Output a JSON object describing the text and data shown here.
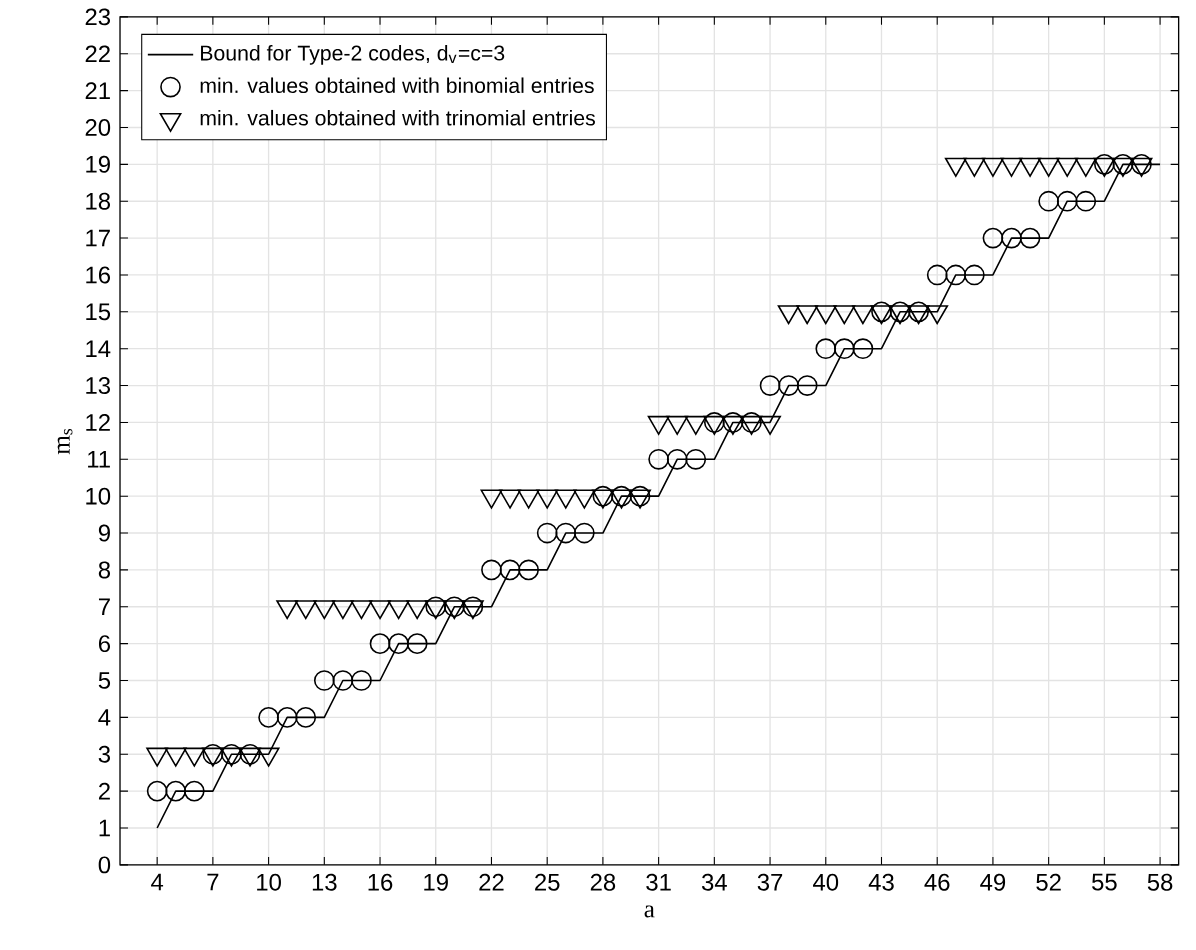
{
  "chart_data": {
    "type": "line",
    "xlabel": "a",
    "ylabel": "m$_{s}$",
    "xlim": [
      2,
      59
    ],
    "ylim": [
      0,
      23
    ],
    "xticks": [
      4,
      7,
      10,
      13,
      16,
      19,
      22,
      25,
      28,
      31,
      34,
      37,
      40,
      43,
      46,
      49,
      52,
      55,
      58
    ],
    "yticks": [
      0,
      1,
      2,
      3,
      4,
      5,
      6,
      7,
      8,
      9,
      10,
      11,
      12,
      13,
      14,
      15,
      16,
      17,
      18,
      19,
      20,
      21,
      22,
      23
    ],
    "grid": true,
    "legend": "top left",
    "series": [
      {
        "name": "Bound for Type-2 codes, d$_{v}$=c=3",
        "color": "#000000",
        "marker": "none",
        "line_style": "solid",
        "x": [
          4,
          5,
          6,
          7,
          8,
          9,
          10,
          11,
          12,
          13,
          14,
          15,
          16,
          17,
          18,
          19,
          20,
          21,
          22,
          23,
          24,
          25,
          26,
          27,
          28,
          29,
          30,
          31,
          32,
          33,
          34,
          35,
          36,
          37,
          38,
          39,
          40,
          41,
          42,
          43,
          44,
          45,
          46,
          47,
          48,
          49,
          50,
          51,
          52,
          53,
          54,
          55,
          56,
          57,
          58
        ],
        "values": [
          1,
          2,
          2,
          2,
          3,
          3,
          3,
          4,
          4,
          4,
          5,
          5,
          5,
          6,
          6,
          6,
          7,
          7,
          7,
          8,
          8,
          8,
          9,
          9,
          9,
          10,
          10,
          10,
          11,
          11,
          11,
          12,
          12,
          12,
          13,
          13,
          13,
          14,
          14,
          14,
          15,
          15,
          15,
          16,
          16,
          16,
          17,
          17,
          17,
          18,
          18,
          18,
          19,
          19,
          19
        ]
      },
      {
        "name": "min. values obtained with binomial entries",
        "type": "scatter",
        "color": "#000000",
        "marker": "circle",
        "x": [
          4,
          5,
          6,
          7,
          8,
          9,
          10,
          11,
          12,
          13,
          14,
          15,
          16,
          17,
          18,
          19,
          20,
          21,
          22,
          23,
          24,
          25,
          26,
          27,
          28,
          29,
          30,
          31,
          32,
          33,
          34,
          35,
          36,
          37,
          38,
          39,
          40,
          41,
          42,
          43,
          44,
          45,
          46,
          47,
          48,
          49,
          50,
          51,
          52,
          53,
          54,
          55,
          56,
          57
        ],
        "values": [
          2,
          2,
          2,
          3,
          3,
          3,
          4,
          4,
          4,
          5,
          5,
          5,
          6,
          6,
          6,
          7,
          7,
          7,
          8,
          8,
          8,
          9,
          9,
          9,
          10,
          10,
          10,
          11,
          11,
          11,
          12,
          12,
          12,
          13,
          13,
          13,
          14,
          14,
          14,
          15,
          15,
          15,
          16,
          16,
          16,
          17,
          17,
          17,
          18,
          18,
          18,
          19,
          19,
          19
        ]
      },
      {
        "name": "min. values obtained with trinomial entries",
        "type": "scatter",
        "color": "#000000",
        "marker": "triangle",
        "x": [
          4,
          5,
          6,
          7,
          8,
          9,
          10,
          11,
          12,
          13,
          14,
          15,
          16,
          17,
          18,
          19,
          20,
          21,
          22,
          23,
          24,
          25,
          26,
          27,
          28,
          29,
          30,
          31,
          32,
          33,
          34,
          35,
          36,
          37,
          38,
          39,
          40,
          41,
          42,
          43,
          44,
          45,
          46,
          47,
          48,
          49,
          50,
          51,
          52,
          53,
          54,
          55,
          56,
          57
        ],
        "values": [
          3,
          3,
          3,
          3,
          3,
          3,
          3,
          7,
          7,
          7,
          7,
          7,
          7,
          7,
          7,
          7,
          7,
          7,
          10,
          10,
          10,
          10,
          10,
          10,
          10,
          10,
          10,
          12,
          12,
          12,
          12,
          12,
          12,
          12,
          15,
          15,
          15,
          15,
          15,
          15,
          15,
          15,
          15,
          19,
          19,
          19,
          19,
          19,
          19,
          19,
          19,
          19,
          19,
          19
        ]
      }
    ]
  }
}
